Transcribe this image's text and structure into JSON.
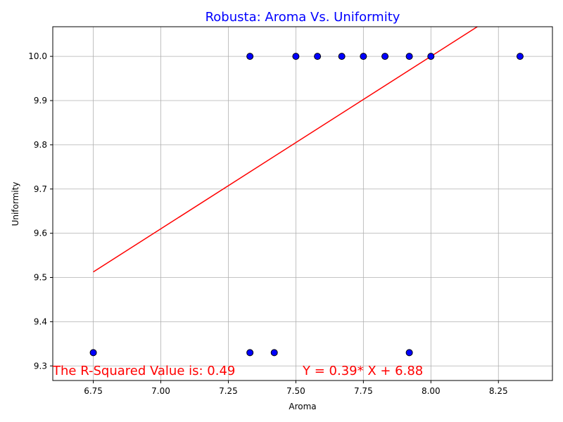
{
  "chart_data": {
    "type": "scatter",
    "title": "Robusta: Aroma Vs. Uniformity",
    "xlabel": "Aroma",
    "ylabel": "Uniformity",
    "xlim": [
      6.6,
      8.45
    ],
    "ylim": [
      9.267,
      10.067
    ],
    "grid": true,
    "xticks": [
      6.75,
      7.0,
      7.25,
      7.5,
      7.75,
      8.0,
      8.25
    ],
    "yticks": [
      9.3,
      9.4,
      9.5,
      9.6,
      9.7,
      9.8,
      9.9,
      10.0
    ],
    "x_tick_labels": [
      "6.75",
      "7.00",
      "7.25",
      "7.50",
      "7.75",
      "8.00",
      "8.25"
    ],
    "y_tick_labels": [
      "9.3",
      "9.4",
      "9.5",
      "9.6",
      "9.7",
      "9.8",
      "9.9",
      "10.0"
    ],
    "points": [
      {
        "x": 6.75,
        "y": 9.33
      },
      {
        "x": 7.33,
        "y": 9.33
      },
      {
        "x": 7.42,
        "y": 9.33
      },
      {
        "x": 7.92,
        "y": 9.33
      },
      {
        "x": 7.33,
        "y": 10.0
      },
      {
        "x": 7.5,
        "y": 10.0
      },
      {
        "x": 7.58,
        "y": 10.0
      },
      {
        "x": 7.67,
        "y": 10.0
      },
      {
        "x": 7.75,
        "y": 10.0
      },
      {
        "x": 7.83,
        "y": 10.0
      },
      {
        "x": 7.92,
        "y": 10.0
      },
      {
        "x": 8.0,
        "y": 10.0
      },
      {
        "x": 8.33,
        "y": 10.0
      }
    ],
    "regression": {
      "slope": 0.39,
      "intercept": 6.88,
      "x_min": 6.75,
      "x_max": 8.33
    },
    "annotations": {
      "r_squared": "The R-Squared Value is: 0.49",
      "equation": "Y = 0.39* X + 6.88"
    },
    "colors": {
      "title": "#0000ff",
      "marker_fill": "#0000ff",
      "marker_edge": "#000000",
      "regression_line": "#ff0000",
      "annotation": "#ff0000",
      "grid": "#b0b0b0"
    }
  }
}
